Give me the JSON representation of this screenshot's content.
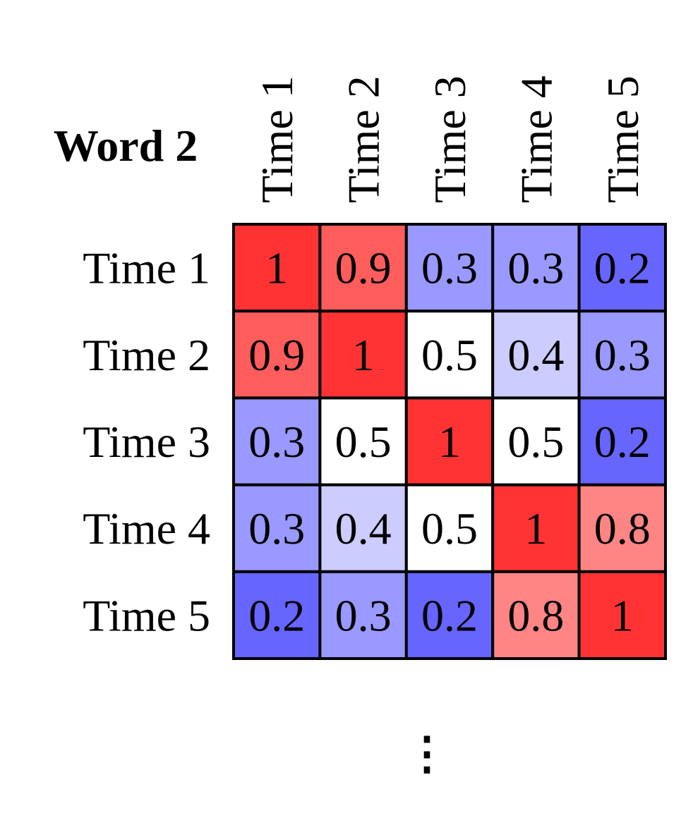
{
  "chart_data": {
    "type": "heatmap",
    "title": "Word 2",
    "rows": [
      "Time 1",
      "Time 2",
      "Time 3",
      "Time 4",
      "Time 5"
    ],
    "columns": [
      "Time 1",
      "Time 2",
      "Time 3",
      "Time 4",
      "Time 5"
    ],
    "values": [
      [
        1,
        0.9,
        0.3,
        0.3,
        0.2
      ],
      [
        0.9,
        1,
        0.5,
        0.4,
        0.3
      ],
      [
        0.3,
        0.5,
        1,
        0.5,
        0.2
      ],
      [
        0.3,
        0.4,
        0.5,
        1,
        0.8
      ],
      [
        0.2,
        0.3,
        0.2,
        0.8,
        1
      ]
    ],
    "value_labels": [
      [
        "1",
        "0.9",
        "0.3",
        "0.3",
        "0.2"
      ],
      [
        "0.9",
        "1",
        "0.5",
        "0.4",
        "0.3"
      ],
      [
        "0.3",
        "0.5",
        "1",
        "0.5",
        "0.2"
      ],
      [
        "0.3",
        "0.4",
        "0.5",
        "1",
        "0.8"
      ],
      [
        "0.2",
        "0.3",
        "0.2",
        "0.8",
        "1"
      ]
    ],
    "colorscale": {
      "low": "#6666ff",
      "mid": "#ffffff",
      "high": "#ff3333",
      "vmin": 0.2,
      "vmid": 0.5,
      "vmax": 1
    },
    "continuation_mark": "⋮"
  }
}
